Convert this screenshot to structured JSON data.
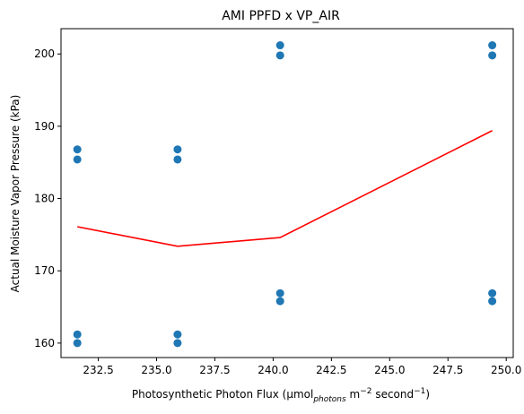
{
  "chart_data": {
    "type": "scatter",
    "title": "AMI PPFD x VP_AIR",
    "xlabel": {
      "prefix": "Photosynthetic Photon Flux (μmol",
      "sub": "photons",
      "mid": " m",
      "sup1": "−2",
      "mid2": " second",
      "sup2": "−1",
      "suffix": ")"
    },
    "ylabel": "Actual Moisture Vapor Pressure (kPa)",
    "xlim": [
      230.9,
      250.3
    ],
    "ylim": [
      158,
      203.5
    ],
    "x_ticks": [
      232.5,
      235.0,
      237.5,
      240.0,
      242.5,
      245.0,
      247.5,
      250.0
    ],
    "x_tick_labels": [
      "232.5",
      "235.0",
      "237.5",
      "240.0",
      "242.5",
      "245.0",
      "247.5",
      "250.0"
    ],
    "y_ticks": [
      160,
      170,
      180,
      190,
      200
    ],
    "y_tick_labels": [
      "160",
      "170",
      "180",
      "190",
      "200"
    ],
    "grid": false,
    "series": [
      {
        "type": "scatter",
        "color": "#1f77b4",
        "points": [
          [
            231.6,
            186.8
          ],
          [
            231.6,
            185.4
          ],
          [
            231.6,
            161.2
          ],
          [
            231.6,
            160.0
          ],
          [
            235.9,
            186.8
          ],
          [
            235.9,
            185.4
          ],
          [
            235.9,
            161.2
          ],
          [
            235.9,
            160.0
          ],
          [
            240.3,
            201.2
          ],
          [
            240.3,
            199.8
          ],
          [
            240.3,
            166.9
          ],
          [
            240.3,
            165.8
          ],
          [
            249.4,
            201.2
          ],
          [
            249.4,
            199.8
          ],
          [
            249.4,
            166.9
          ],
          [
            249.4,
            165.8
          ]
        ]
      },
      {
        "type": "line",
        "color": "#ff0000",
        "points": [
          [
            231.6,
            176.1
          ],
          [
            235.9,
            173.4
          ],
          [
            240.3,
            174.6
          ],
          [
            249.4,
            189.4
          ]
        ]
      }
    ]
  }
}
